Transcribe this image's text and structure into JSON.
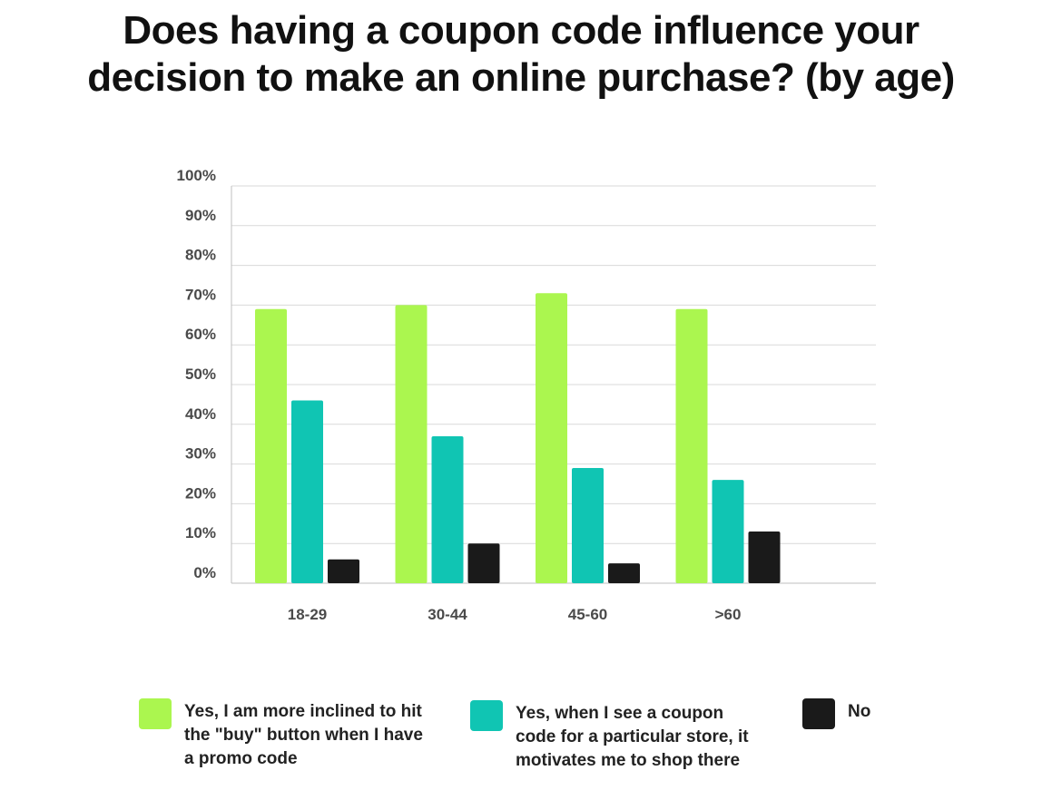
{
  "chart_data": {
    "type": "bar",
    "title_lines": [
      "Does having a coupon code influence your",
      "decision to make an online purchase? (by age)"
    ],
    "categories": [
      "18-29",
      "30-44",
      "45-60",
      ">60"
    ],
    "series": [
      {
        "name": "Yes, I am more inclined to hit the \"buy\" button when I have a promo code",
        "name_lines": [
          "Yes, I am more inclined to hit",
          "the \"buy\" button when I have",
          "a promo code"
        ],
        "color": "#abf64f",
        "values": [
          69,
          70,
          73,
          69
        ]
      },
      {
        "name": "Yes, when I see a coupon code for a particular store, it motivates me to shop there",
        "name_lines": [
          "Yes, when I see a coupon",
          "code for a particular store, it",
          "motivates me to shop there"
        ],
        "color": "#10c5b3",
        "values": [
          46,
          37,
          29,
          26
        ]
      },
      {
        "name": "No",
        "name_lines": [
          "No"
        ],
        "color": "#1a1a1a",
        "values": [
          6,
          10,
          5,
          13
        ]
      }
    ],
    "ylim": [
      0,
      100
    ],
    "yticks": [
      "0%",
      "10%",
      "20%",
      "30%",
      "40%",
      "50%",
      "60%",
      "70%",
      "80%",
      "90%",
      "100%"
    ],
    "grid": true,
    "legend_position": "bottom"
  }
}
